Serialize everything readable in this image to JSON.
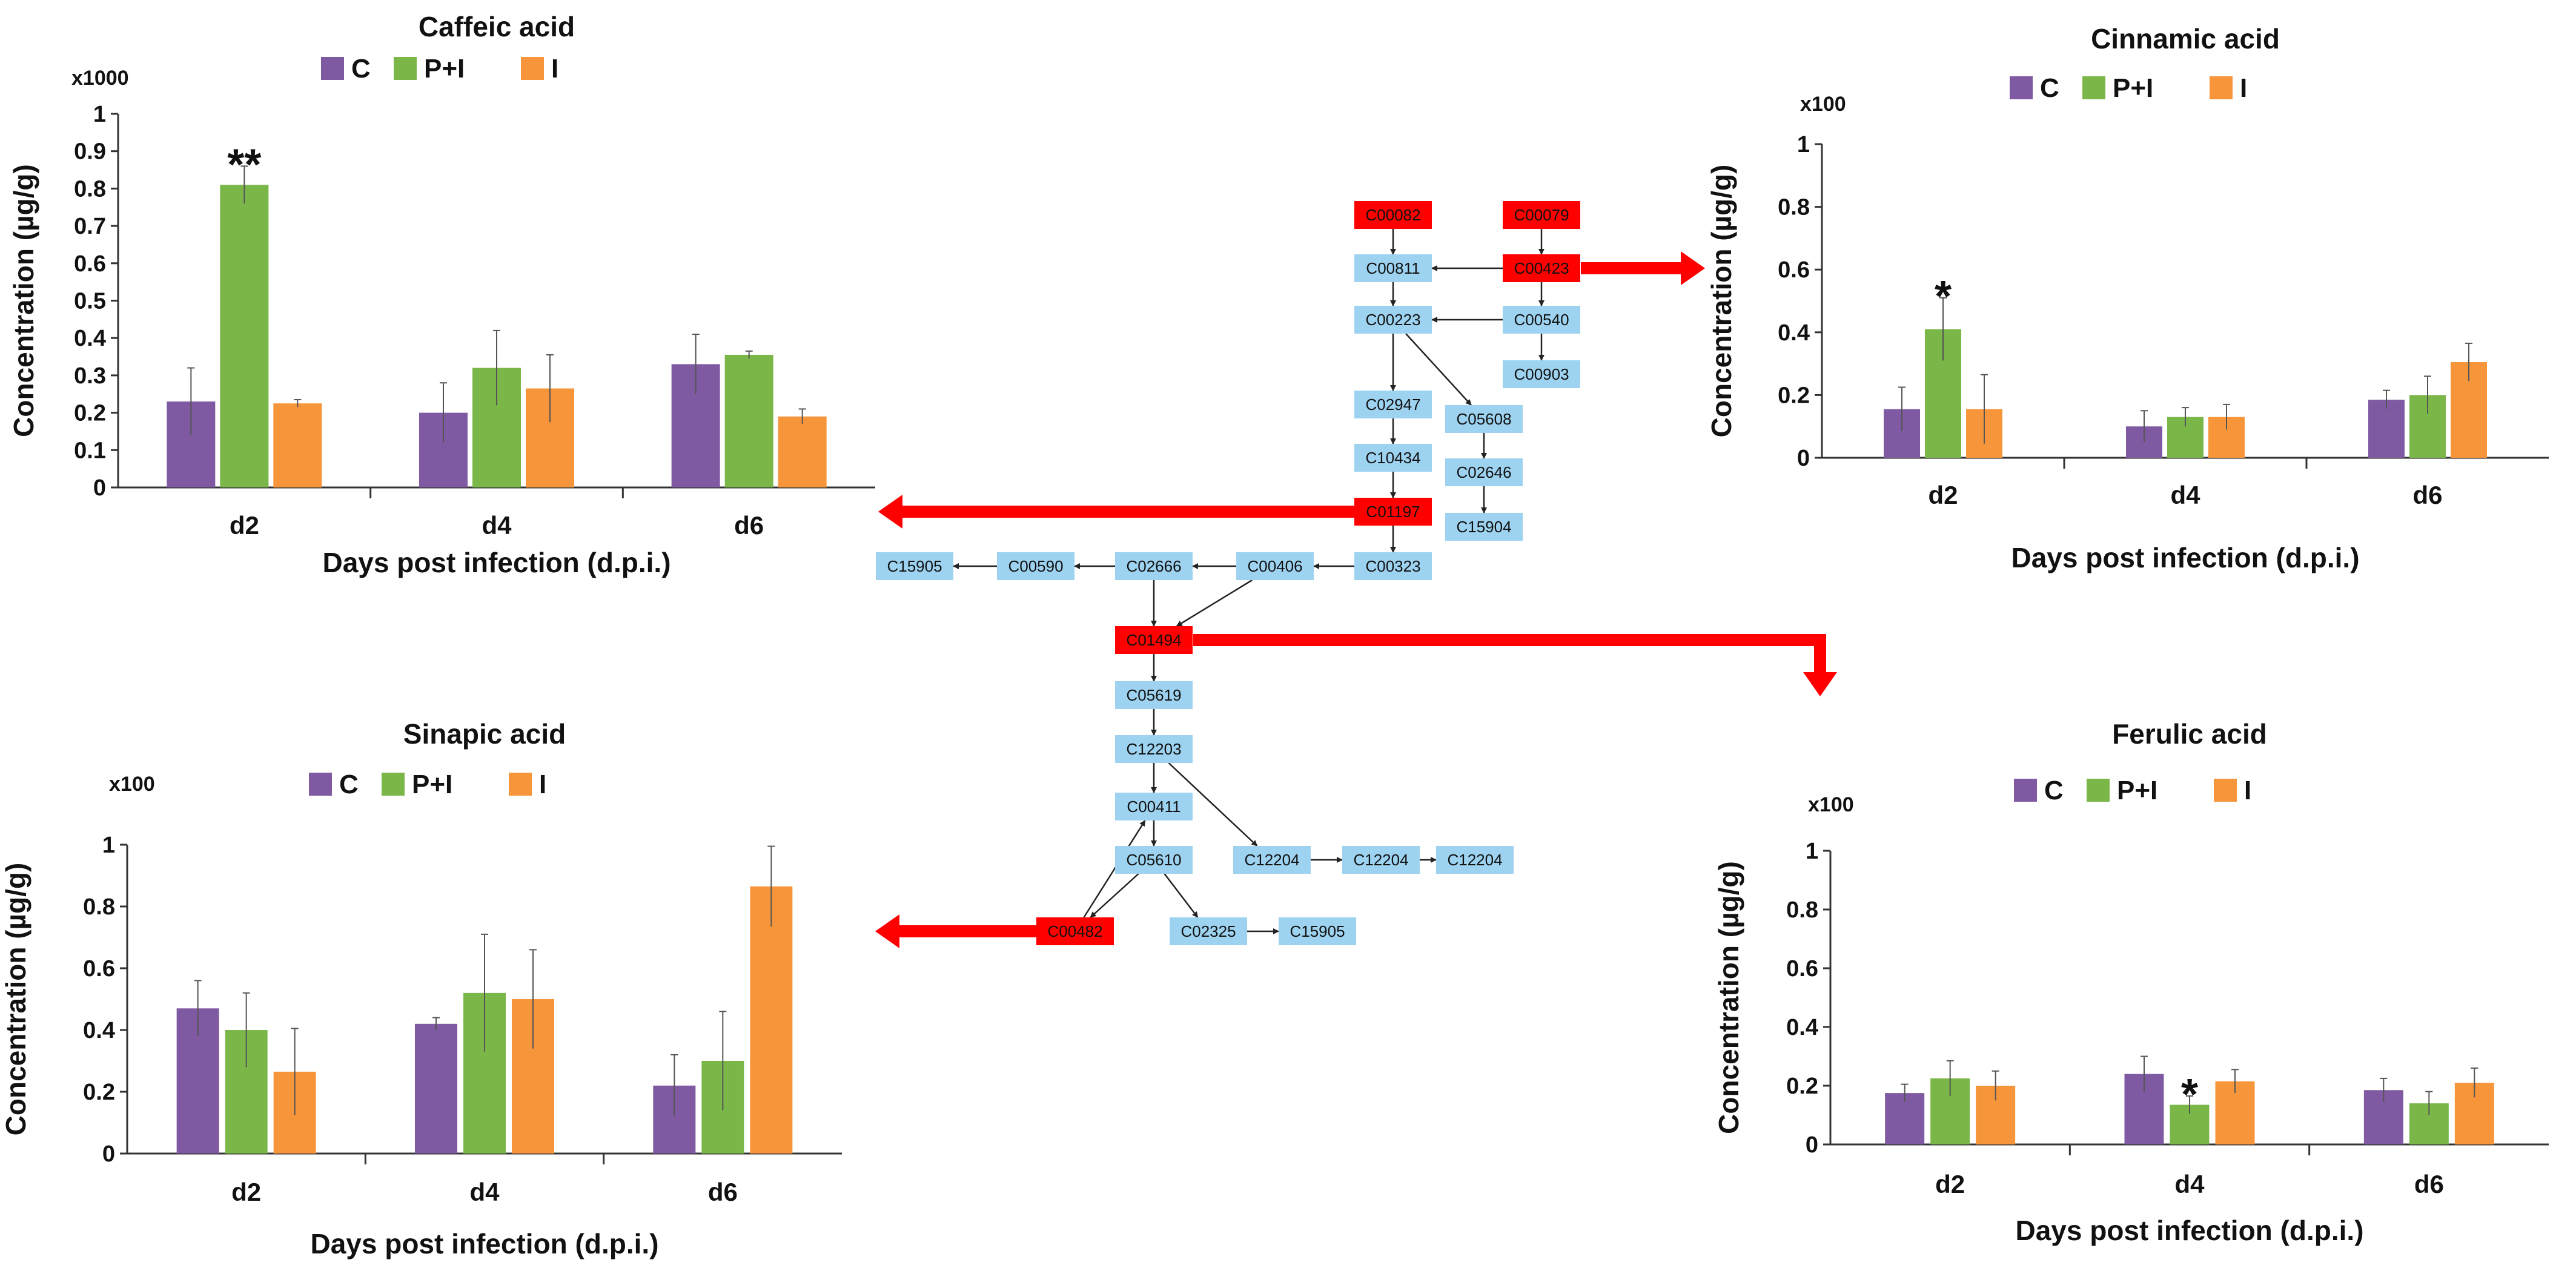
{
  "chart_data": [
    {
      "type": "bar",
      "title": "Caffeic acid",
      "multiplier": "x1000",
      "ylabel": "Concentration (µg/g)",
      "xlabel": "Days post infection (d.p.i.)",
      "categories": [
        "d2",
        "d4",
        "d6"
      ],
      "ylim": [
        0,
        1
      ],
      "yticks": [
        "0",
        "0.1",
        "0.2",
        "0.3",
        "0.4",
        "0.5",
        "0.6",
        "0.7",
        "0.8",
        "0.9",
        "1"
      ],
      "legend_position": "top",
      "series": [
        {
          "name": "C",
          "color": "#7f5aa2",
          "values": [
            0.23,
            0.2,
            0.33
          ],
          "errors": [
            0.09,
            0.08,
            0.08
          ]
        },
        {
          "name": "P+I",
          "color": "#7ab648",
          "values": [
            0.81,
            0.32,
            0.355
          ],
          "errors": [
            0.05,
            0.1,
            0.01
          ]
        },
        {
          "name": "I",
          "color": "#f7953b",
          "values": [
            0.225,
            0.265,
            0.19
          ],
          "errors": [
            0.01,
            0.09,
            0.02
          ]
        }
      ],
      "annotations": [
        {
          "category": "d2",
          "series": "P+I",
          "text": "**"
        }
      ]
    },
    {
      "type": "bar",
      "title": "Cinnamic acid",
      "multiplier": "x100",
      "ylabel": "Concentration (µg/g)",
      "xlabel": "Days post infection (d.p.i.)",
      "categories": [
        "d2",
        "d4",
        "d6"
      ],
      "ylim": [
        0,
        1
      ],
      "yticks": [
        "0",
        "0.2",
        "0.4",
        "0.6",
        "0.8",
        "1"
      ],
      "legend_position": "top",
      "series": [
        {
          "name": "C",
          "color": "#7f5aa2",
          "values": [
            0.155,
            0.1,
            0.185
          ],
          "errors": [
            0.07,
            0.05,
            0.03
          ]
        },
        {
          "name": "P+I",
          "color": "#7ab648",
          "values": [
            0.41,
            0.13,
            0.2
          ],
          "errors": [
            0.1,
            0.03,
            0.06
          ]
        },
        {
          "name": "I",
          "color": "#f7953b",
          "values": [
            0.155,
            0.13,
            0.305
          ],
          "errors": [
            0.11,
            0.04,
            0.06
          ]
        }
      ],
      "annotations": [
        {
          "category": "d2",
          "series": "P+I",
          "text": "*"
        }
      ]
    },
    {
      "type": "bar",
      "title": "Sinapic acid",
      "multiplier": "x100",
      "ylabel": "Concentration (µg/g)",
      "xlabel": "Days post infection (d.p.i.)",
      "categories": [
        "d2",
        "d4",
        "d6"
      ],
      "ylim": [
        0,
        1
      ],
      "yticks": [
        "0",
        "0.2",
        "0.4",
        "0.6",
        "0.8",
        "1"
      ],
      "legend_position": "top",
      "series": [
        {
          "name": "C",
          "color": "#7f5aa2",
          "values": [
            0.47,
            0.42,
            0.22
          ],
          "errors": [
            0.09,
            0.02,
            0.1
          ]
        },
        {
          "name": "P+I",
          "color": "#7ab648",
          "values": [
            0.4,
            0.52,
            0.3
          ],
          "errors": [
            0.12,
            0.19,
            0.16
          ]
        },
        {
          "name": "I",
          "color": "#f7953b",
          "values": [
            0.265,
            0.5,
            0.865
          ],
          "errors": [
            0.14,
            0.16,
            0.13
          ]
        }
      ],
      "annotations": []
    },
    {
      "type": "bar",
      "title": "Ferulic acid",
      "multiplier": "x100",
      "ylabel": "Concentration (µg/g)",
      "xlabel": "Days post infection (d.p.i.)",
      "categories": [
        "d2",
        "d4",
        "d6"
      ],
      "ylim": [
        0,
        1
      ],
      "yticks": [
        "0",
        "0.2",
        "0.4",
        "0.6",
        "0.8",
        "1"
      ],
      "legend_position": "top",
      "series": [
        {
          "name": "C",
          "color": "#7f5aa2",
          "values": [
            0.175,
            0.24,
            0.185
          ],
          "errors": [
            0.03,
            0.06,
            0.04
          ]
        },
        {
          "name": "P+I",
          "color": "#7ab648",
          "values": [
            0.225,
            0.135,
            0.14
          ],
          "errors": [
            0.06,
            0.03,
            0.04
          ]
        },
        {
          "name": "I",
          "color": "#f7953b",
          "values": [
            0.2,
            0.215,
            0.21
          ],
          "errors": [
            0.05,
            0.04,
            0.05
          ]
        }
      ],
      "annotations": [
        {
          "category": "d4",
          "series": "P+I",
          "text": "*"
        }
      ]
    }
  ],
  "pathway": {
    "highlight_color": "#ff0000",
    "node_color": "#9dd3f0",
    "nodes": [
      {
        "id": "n1",
        "label": "C00082",
        "highlight": true
      },
      {
        "id": "n2",
        "label": "C00079",
        "highlight": true
      },
      {
        "id": "n3",
        "label": "C00811",
        "highlight": false
      },
      {
        "id": "n4",
        "label": "C00423",
        "highlight": true
      },
      {
        "id": "n5",
        "label": "C00223",
        "highlight": false
      },
      {
        "id": "n6",
        "label": "C00540",
        "highlight": false
      },
      {
        "id": "n7",
        "label": "C00903",
        "highlight": false
      },
      {
        "id": "n8",
        "label": "C02947",
        "highlight": false
      },
      {
        "id": "n9",
        "label": "C05608",
        "highlight": false
      },
      {
        "id": "n10",
        "label": "C10434",
        "highlight": false
      },
      {
        "id": "n11",
        "label": "C02646",
        "highlight": false
      },
      {
        "id": "n12",
        "label": "C01197",
        "highlight": true
      },
      {
        "id": "n13",
        "label": "C15904",
        "highlight": false
      },
      {
        "id": "n14",
        "label": "C15905",
        "highlight": false
      },
      {
        "id": "n15",
        "label": "C00590",
        "highlight": false
      },
      {
        "id": "n16",
        "label": "C02666",
        "highlight": false
      },
      {
        "id": "n17",
        "label": "C00406",
        "highlight": false
      },
      {
        "id": "n18",
        "label": "C00323",
        "highlight": false
      },
      {
        "id": "n19",
        "label": "C01494",
        "highlight": true
      },
      {
        "id": "n20",
        "label": "C05619",
        "highlight": false
      },
      {
        "id": "n21",
        "label": "C12203",
        "highlight": false
      },
      {
        "id": "n22",
        "label": "C00411",
        "highlight": false
      },
      {
        "id": "n23",
        "label": "C05610",
        "highlight": false
      },
      {
        "id": "n24",
        "label": "C12204",
        "highlight": false
      },
      {
        "id": "n25",
        "label": "C12204",
        "highlight": false
      },
      {
        "id": "n26",
        "label": "C12204",
        "highlight": false
      },
      {
        "id": "n27",
        "label": "C00482",
        "highlight": true
      },
      {
        "id": "n28",
        "label": "C02325",
        "highlight": false
      },
      {
        "id": "n29",
        "label": "C15905",
        "highlight": false
      }
    ]
  }
}
